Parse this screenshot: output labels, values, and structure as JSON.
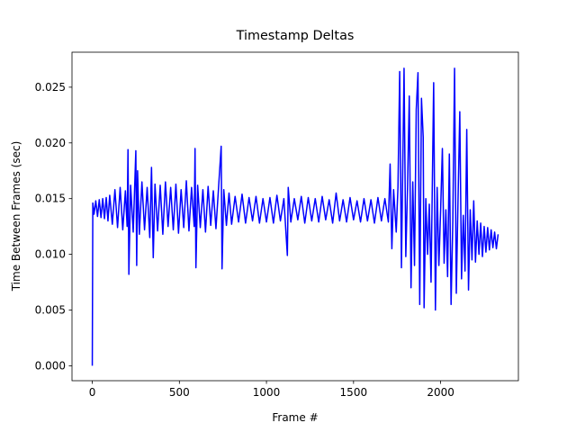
{
  "chart_data": {
    "type": "line",
    "title": "Timestamp Deltas",
    "x_label": "Frame #",
    "y_label": "Time Between Frames (sec)",
    "color": "#0000ff",
    "grid": false,
    "xlim": [
      -116.5,
      2446.5
    ],
    "xticks": [
      0,
      500,
      1000,
      1500,
      2000
    ],
    "ylim": [
      -0.00134,
      0.02814
    ],
    "yticks": [
      {
        "value": 0,
        "label": "0.000"
      },
      {
        "value": 0.005,
        "label": "0.005"
      },
      {
        "value": 0.01,
        "label": "0.010"
      },
      {
        "value": 0.015,
        "label": "0.015"
      },
      {
        "value": 0.02,
        "label": "0.020"
      },
      {
        "value": 0.025,
        "label": "0.025"
      }
    ],
    "x": [
      0,
      3,
      10,
      20,
      30,
      40,
      50,
      60,
      70,
      80,
      90,
      100,
      115,
      130,
      145,
      160,
      175,
      190,
      200,
      205,
      210,
      220,
      235,
      250,
      255,
      260,
      270,
      285,
      300,
      315,
      330,
      340,
      350,
      360,
      375,
      390,
      405,
      420,
      435,
      450,
      465,
      480,
      495,
      510,
      525,
      540,
      555,
      570,
      585,
      590,
      595,
      605,
      620,
      635,
      650,
      665,
      680,
      695,
      710,
      725,
      740,
      745,
      755,
      770,
      785,
      800,
      820,
      840,
      860,
      880,
      900,
      920,
      940,
      960,
      980,
      1000,
      1020,
      1040,
      1060,
      1080,
      1100,
      1120,
      1125,
      1140,
      1160,
      1180,
      1200,
      1220,
      1240,
      1260,
      1280,
      1300,
      1320,
      1340,
      1360,
      1380,
      1400,
      1420,
      1440,
      1460,
      1480,
      1500,
      1520,
      1540,
      1560,
      1580,
      1600,
      1620,
      1640,
      1660,
      1680,
      1700,
      1710,
      1720,
      1730,
      1745,
      1755,
      1765,
      1775,
      1790,
      1800,
      1810,
      1820,
      1830,
      1840,
      1850,
      1860,
      1870,
      1880,
      1890,
      1900,
      1905,
      1915,
      1925,
      1935,
      1945,
      1960,
      1970,
      1980,
      1990,
      2000,
      2010,
      2020,
      2030,
      2040,
      2050,
      2060,
      2070,
      2080,
      2090,
      2100,
      2110,
      2120,
      2130,
      2140,
      2150,
      2160,
      2170,
      2180,
      2190,
      2200,
      2210,
      2220,
      2230,
      2240,
      2250,
      2260,
      2270,
      2280,
      2290,
      2300,
      2310,
      2320,
      2330
    ],
    "values": [
      0,
      0.0146,
      0.0136,
      0.0148,
      0.0134,
      0.0149,
      0.0133,
      0.015,
      0.0132,
      0.0151,
      0.013,
      0.0153,
      0.0127,
      0.0158,
      0.0124,
      0.016,
      0.0122,
      0.0157,
      0.0125,
      0.0194,
      0.0082,
      0.0162,
      0.012,
      0.0193,
      0.009,
      0.0175,
      0.0118,
      0.0165,
      0.0122,
      0.016,
      0.0115,
      0.0178,
      0.0097,
      0.0163,
      0.0121,
      0.0162,
      0.0118,
      0.0165,
      0.0125,
      0.016,
      0.0122,
      0.0163,
      0.0119,
      0.0158,
      0.0124,
      0.0166,
      0.0121,
      0.016,
      0.0125,
      0.0195,
      0.0088,
      0.0162,
      0.0124,
      0.0158,
      0.012,
      0.0161,
      0.0126,
      0.0157,
      0.0123,
      0.016,
      0.0197,
      0.0087,
      0.0158,
      0.0126,
      0.0155,
      0.0127,
      0.0152,
      0.0129,
      0.0154,
      0.0128,
      0.0151,
      0.013,
      0.0152,
      0.0128,
      0.015,
      0.0129,
      0.0151,
      0.0128,
      0.0153,
      0.013,
      0.015,
      0.0099,
      0.016,
      0.0129,
      0.015,
      0.0131,
      0.0152,
      0.0128,
      0.0151,
      0.013,
      0.015,
      0.0129,
      0.0152,
      0.0131,
      0.0149,
      0.0128,
      0.0155,
      0.013,
      0.0149,
      0.0129,
      0.0151,
      0.0131,
      0.0148,
      0.0129,
      0.015,
      0.013,
      0.0149,
      0.0128,
      0.0151,
      0.013,
      0.015,
      0.0129,
      0.0181,
      0.0105,
      0.0158,
      0.012,
      0.016,
      0.0264,
      0.0088,
      0.0267,
      0.0098,
      0.016,
      0.0242,
      0.007,
      0.0165,
      0.009,
      0.023,
      0.0263,
      0.0055,
      0.024,
      0.0205,
      0.0052,
      0.015,
      0.01,
      0.0145,
      0.0075,
      0.0254,
      0.005,
      0.016,
      0.009,
      0.014,
      0.0195,
      0.0092,
      0.014,
      0.008,
      0.019,
      0.0055,
      0.013,
      0.0267,
      0.0065,
      0.015,
      0.0228,
      0.0078,
      0.0135,
      0.0085,
      0.0212,
      0.0068,
      0.014,
      0.0095,
      0.0148,
      0.0093,
      0.013,
      0.01,
      0.0128,
      0.0098,
      0.0125,
      0.0102,
      0.0124,
      0.0104,
      0.0122,
      0.0106,
      0.012,
      0.0105,
      0.0118
    ]
  }
}
